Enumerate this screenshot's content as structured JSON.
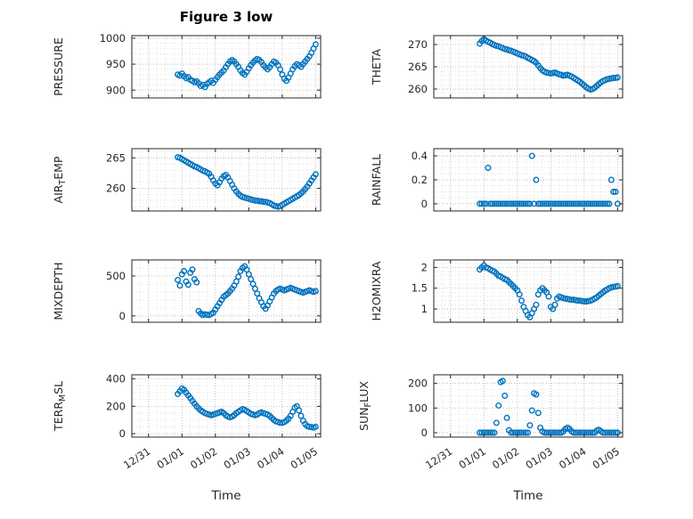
{
  "title": "Figure 3 low",
  "xlabel": "Time",
  "axis_color": "#262626",
  "marker_color": "#0072BD",
  "grid_color": "#b3b3b3",
  "minor_grid_color": "#dadada",
  "xlim": [
    -0.5,
    5.15
  ],
  "x_minor_step": 0.25,
  "x_ticks": [
    0,
    1,
    2,
    3,
    4,
    5
  ],
  "x_tick_labels": [
    "12/31",
    "01/01",
    "01/02",
    "01/03",
    "01/04",
    "01/05"
  ],
  "x_base": [
    0.875,
    0.9375,
    1.0,
    1.0625,
    1.125,
    1.1875,
    1.25,
    1.3125,
    1.375,
    1.4375,
    1.5,
    1.5625,
    1.625,
    1.6875,
    1.75,
    1.8125,
    1.875,
    1.9375,
    2.0,
    2.0625,
    2.125,
    2.1875,
    2.25,
    2.3125,
    2.375,
    2.4375,
    2.5,
    2.5625,
    2.625,
    2.6875,
    2.75,
    2.8125,
    2.875,
    2.9375,
    3.0,
    3.0625,
    3.125,
    3.1875,
    3.25,
    3.3125,
    3.375,
    3.4375,
    3.5,
    3.5625,
    3.625,
    3.6875,
    3.75,
    3.8125,
    3.875,
    3.9375,
    4.0,
    4.0625,
    4.125,
    4.1875,
    4.25,
    4.3125,
    4.375,
    4.4375,
    4.5,
    4.5625,
    4.625,
    4.6875,
    4.75,
    4.8125,
    4.875,
    4.9375,
    5.0
  ],
  "chart_data": [
    {
      "type": "scatter",
      "name": "PRESSURE",
      "ylabel_parts": [
        {
          "text": "PRESSURE",
          "sub": false
        }
      ],
      "ylabel_x": 14,
      "ylim": [
        885,
        1005
      ],
      "yticks": [
        900,
        950,
        1000
      ],
      "ytick_labels": [
        "900",
        "950",
        "1000"
      ],
      "y_minor_step": 10,
      "show_x_tick_labels": false,
      "values": [
        930,
        928,
        932,
        927,
        923,
        925,
        920,
        918,
        915,
        917,
        913,
        908,
        910,
        906,
        912,
        915,
        918,
        914,
        920,
        925,
        930,
        934,
        938,
        944,
        950,
        955,
        958,
        955,
        950,
        945,
        938,
        933,
        930,
        935,
        942,
        948,
        953,
        957,
        960,
        958,
        954,
        948,
        944,
        940,
        944,
        950,
        955,
        953,
        948,
        940,
        930,
        922,
        918,
        924,
        932,
        940,
        946,
        950,
        948,
        945,
        950,
        955,
        960,
        965,
        972,
        980,
        988
      ]
    },
    {
      "type": "scatter",
      "name": "THETA",
      "ylabel_parts": [
        {
          "text": "THETA",
          "sub": false
        }
      ],
      "ylabel_x": 32,
      "ylim": [
        258,
        272
      ],
      "yticks": [
        260,
        265,
        270
      ],
      "ytick_labels": [
        "260",
        "265",
        "270"
      ],
      "y_minor_step": 1,
      "show_x_tick_labels": false,
      "values": [
        270.2,
        270.8,
        271.2,
        270.9,
        270.6,
        270.4,
        270.1,
        269.9,
        269.7,
        269.6,
        269.4,
        269.2,
        269.0,
        268.9,
        268.7,
        268.6,
        268.4,
        268.2,
        268.0,
        267.8,
        267.6,
        267.5,
        267.3,
        267.0,
        266.8,
        266.5,
        266.3,
        265.9,
        265.3,
        264.7,
        264.2,
        263.9,
        263.7,
        263.6,
        263.5,
        263.6,
        263.7,
        263.5,
        263.3,
        263.2,
        263.0,
        263.1,
        263.2,
        263.0,
        262.8,
        262.5,
        262.2,
        261.9,
        261.6,
        261.2,
        260.8,
        260.4,
        260.1,
        259.9,
        260.0,
        260.3,
        260.7,
        261.1,
        261.5,
        261.8,
        262.0,
        262.2,
        262.3,
        262.4,
        262.5,
        262.5,
        262.6
      ]
    },
    {
      "type": "scatter",
      "name": "AIR_TEMP",
      "ylabel_parts": [
        {
          "text": "AIR",
          "sub": false
        },
        {
          "text": "T",
          "sub": true
        },
        {
          "text": "EMP",
          "sub": false
        }
      ],
      "ylabel_x": 14,
      "ylim": [
        256.3,
        266.5
      ],
      "yticks": [
        260,
        265
      ],
      "ytick_labels": [
        "260",
        "265"
      ],
      "y_minor_step": 1,
      "show_x_tick_labels": false,
      "values": [
        265.1,
        265.0,
        264.8,
        264.6,
        264.4,
        264.2,
        264.0,
        263.8,
        263.6,
        263.5,
        263.3,
        263.1,
        262.9,
        262.8,
        262.6,
        262.4,
        261.9,
        261.3,
        260.8,
        260.5,
        261.0,
        261.6,
        262.0,
        262.2,
        261.8,
        261.2,
        260.6,
        260.0,
        259.5,
        259.1,
        258.8,
        258.6,
        258.5,
        258.4,
        258.3,
        258.2,
        258.1,
        258.0,
        258.0,
        257.9,
        257.9,
        257.8,
        257.8,
        257.7,
        257.6,
        257.4,
        257.2,
        257.1,
        257.0,
        257.1,
        257.3,
        257.5,
        257.7,
        257.9,
        258.1,
        258.3,
        258.5,
        258.7,
        258.9,
        259.2,
        259.5,
        259.9,
        260.3,
        260.8,
        261.3,
        261.8,
        262.3
      ]
    },
    {
      "type": "scatter",
      "name": "RAINFALL",
      "ylabel_parts": [
        {
          "text": "RAINFALL",
          "sub": false
        }
      ],
      "ylabel_x": 32,
      "ylim": [
        -0.06,
        0.46
      ],
      "yticks": [
        0,
        0.2,
        0.4
      ],
      "ytick_labels": [
        "0",
        "0.2",
        "0.4"
      ],
      "y_minor_step": 0.05,
      "show_x_tick_labels": false,
      "values": [
        0,
        0,
        0,
        0,
        0.3,
        0,
        0,
        0,
        0,
        0,
        0,
        0,
        0,
        0,
        0,
        0,
        0,
        0,
        0,
        0,
        0,
        0,
        0,
        0,
        0,
        0.4,
        0,
        0.2,
        0,
        0,
        0,
        0,
        0,
        0,
        0,
        0,
        0,
        0,
        0,
        0,
        0,
        0,
        0,
        0,
        0,
        0,
        0,
        0,
        0,
        0,
        0,
        0,
        0,
        0,
        0,
        0,
        0,
        0,
        0,
        0,
        0,
        0,
        0,
        0.2,
        0.1,
        0.1,
        0
      ]
    },
    {
      "type": "scatter",
      "name": "MIXDEPTH",
      "ylabel_parts": [
        {
          "text": "MIXDEPTH",
          "sub": false
        }
      ],
      "ylabel_x": 14,
      "ylim": [
        -80,
        700
      ],
      "yticks": [
        0,
        500
      ],
      "ytick_labels": [
        "0",
        "500"
      ],
      "y_minor_step": 100,
      "show_x_tick_labels": false,
      "values": [
        450,
        380,
        520,
        560,
        430,
        390,
        540,
        580,
        460,
        420,
        60,
        30,
        10,
        20,
        15,
        10,
        25,
        40,
        80,
        120,
        160,
        200,
        240,
        260,
        280,
        310,
        340,
        380,
        430,
        490,
        560,
        600,
        620,
        580,
        520,
        460,
        400,
        340,
        280,
        220,
        170,
        120,
        90,
        130,
        180,
        230,
        280,
        310,
        330,
        340,
        330,
        320,
        330,
        340,
        350,
        340,
        330,
        320,
        310,
        300,
        290,
        300,
        310,
        320,
        310,
        300,
        310
      ]
    },
    {
      "type": "scatter",
      "name": "H2OMIXRA",
      "ylabel_parts": [
        {
          "text": "H2OMIXRA",
          "sub": false
        }
      ],
      "ylabel_x": 32,
      "ylim": [
        0.68,
        2.18
      ],
      "yticks": [
        1,
        1.5,
        2
      ],
      "ytick_labels": [
        "1",
        "1.5",
        "2"
      ],
      "y_minor_step": 0.1,
      "show_x_tick_labels": false,
      "values": [
        1.95,
        2.0,
        2.05,
        2.0,
        1.98,
        1.95,
        1.92,
        1.9,
        1.85,
        1.8,
        1.78,
        1.75,
        1.72,
        1.7,
        1.65,
        1.6,
        1.55,
        1.5,
        1.45,
        1.35,
        1.2,
        1.05,
        0.95,
        0.85,
        0.8,
        0.9,
        1.0,
        1.1,
        1.35,
        1.45,
        1.5,
        1.45,
        1.4,
        1.3,
        1.05,
        1.0,
        1.1,
        1.25,
        1.3,
        1.28,
        1.26,
        1.25,
        1.24,
        1.23,
        1.22,
        1.22,
        1.21,
        1.2,
        1.2,
        1.19,
        1.18,
        1.18,
        1.19,
        1.2,
        1.22,
        1.25,
        1.28,
        1.32,
        1.36,
        1.4,
        1.44,
        1.47,
        1.5,
        1.52,
        1.53,
        1.54,
        1.55
      ]
    },
    {
      "type": "scatter",
      "name": "TERR_MSL",
      "ylabel_parts": [
        {
          "text": "TERR",
          "sub": false
        },
        {
          "text": "M",
          "sub": true
        },
        {
          "text": "SL",
          "sub": false
        }
      ],
      "ylabel_x": 14,
      "ylim": [
        -25,
        430
      ],
      "yticks": [
        0,
        200,
        400
      ],
      "ytick_labels": [
        "0",
        "200",
        "400"
      ],
      "y_minor_step": 50,
      "show_x_tick_labels": true,
      "values": [
        290,
        310,
        330,
        320,
        300,
        280,
        260,
        240,
        220,
        200,
        185,
        170,
        160,
        150,
        145,
        140,
        135,
        140,
        145,
        150,
        155,
        160,
        150,
        135,
        125,
        120,
        125,
        135,
        150,
        160,
        170,
        180,
        175,
        165,
        155,
        145,
        140,
        135,
        140,
        150,
        155,
        150,
        145,
        140,
        130,
        115,
        100,
        90,
        85,
        80,
        80,
        85,
        95,
        110,
        130,
        160,
        190,
        200,
        170,
        130,
        95,
        70,
        55,
        50,
        48,
        45,
        50
      ]
    },
    {
      "type": "scatter",
      "name": "SUN_FLUX",
      "ylabel_parts": [
        {
          "text": "SUN",
          "sub": false
        },
        {
          "text": "F",
          "sub": true
        },
        {
          "text": "LUX",
          "sub": false
        }
      ],
      "ylabel_x": 18,
      "ylim": [
        -18,
        235
      ],
      "yticks": [
        0,
        100,
        200
      ],
      "ytick_labels": [
        "0",
        "100",
        "200"
      ],
      "y_minor_step": 25,
      "show_x_tick_labels": true,
      "values": [
        0,
        0,
        0,
        0,
        0,
        0,
        0,
        0,
        40,
        110,
        205,
        210,
        150,
        60,
        10,
        0,
        0,
        0,
        0,
        0,
        0,
        0,
        0,
        0,
        30,
        90,
        160,
        155,
        80,
        20,
        5,
        0,
        0,
        0,
        0,
        0,
        0,
        0,
        0,
        0,
        5,
        15,
        20,
        15,
        5,
        0,
        0,
        0,
        0,
        0,
        0,
        0,
        0,
        0,
        0,
        0,
        8,
        12,
        6,
        0,
        0,
        0,
        0,
        0,
        0,
        0,
        0
      ]
    }
  ]
}
